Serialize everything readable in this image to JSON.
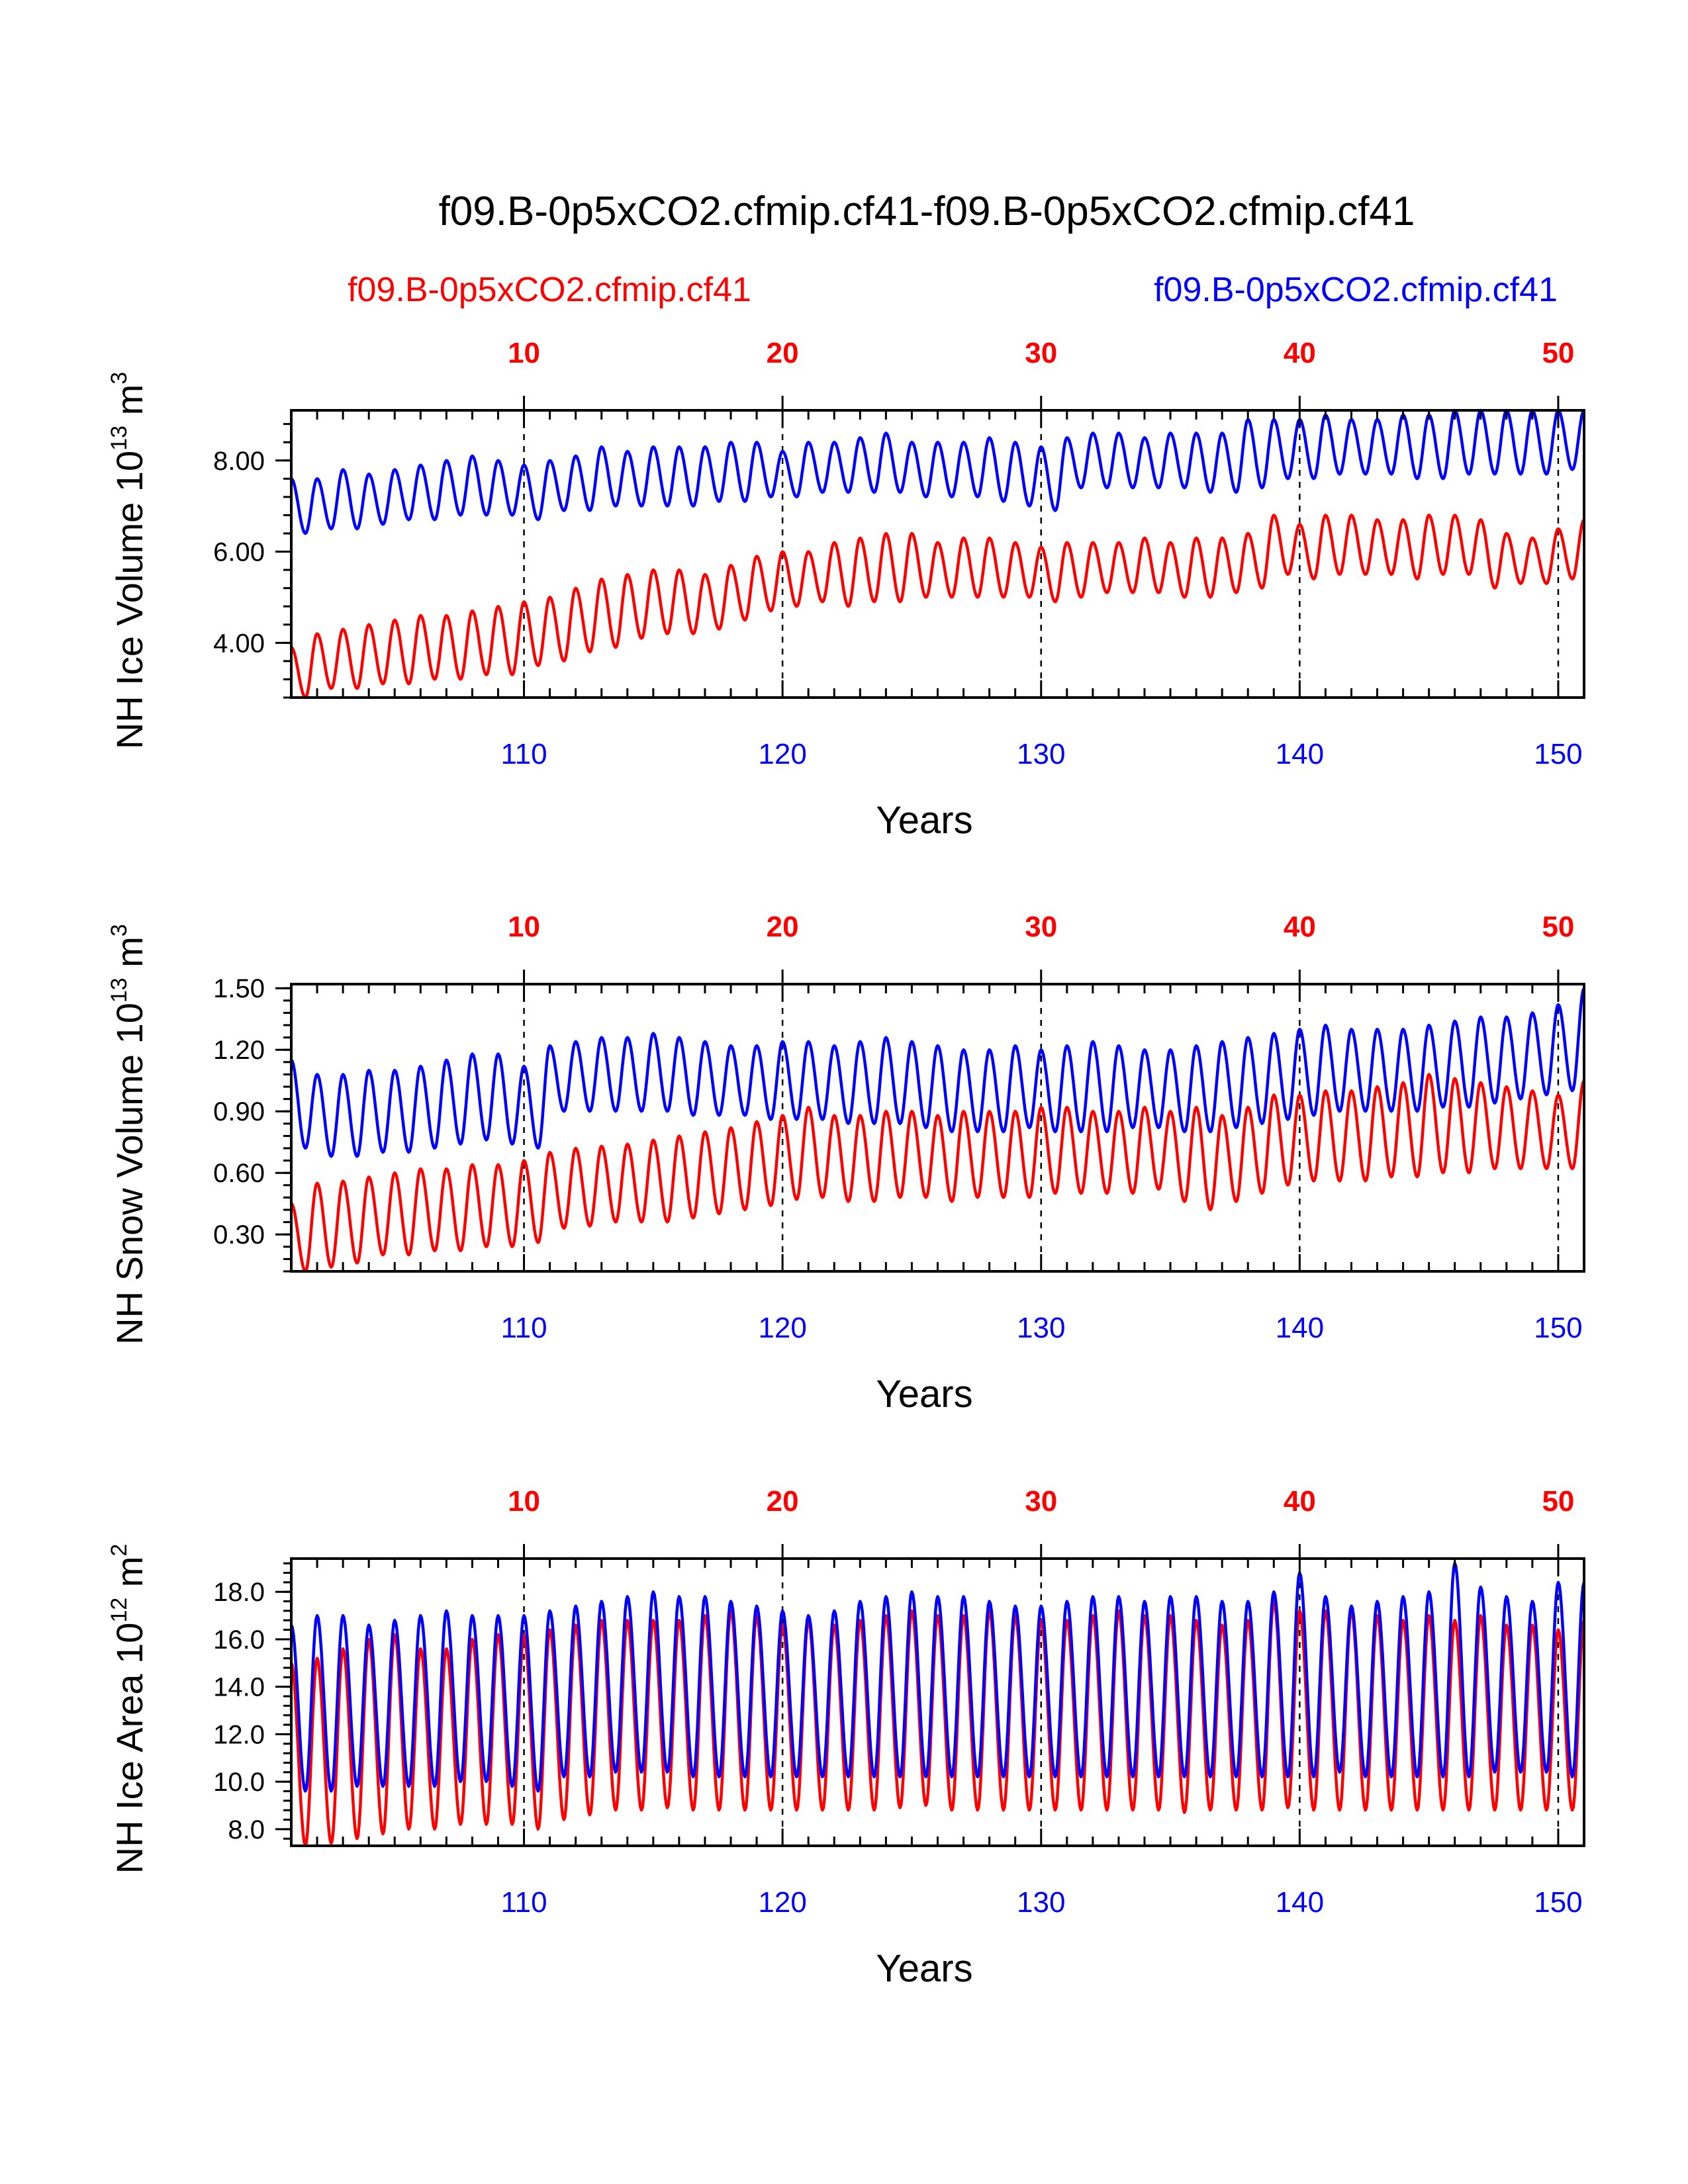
{
  "title": "f09.B-0p5xCO2.cfmip.cf41-f09.B-0p5xCO2.cfmip.cf41",
  "legend_left": "f09.B-0p5xCO2.cfmip.cf41",
  "legend_right": "f09.B-0p5xCO2.cfmip.cf41",
  "colors": {
    "series1": "#ff0000",
    "series2": "#0000ff",
    "axis": "#000000"
  },
  "chart_data": [
    {
      "type": "line",
      "ylabel_base": "NH Ice Volume 10",
      "ylabel_exp": "13",
      "ylabel_unit": " m",
      "ylabel_unit_exp": "3",
      "xlabel": "Years",
      "ylim": [
        2.8,
        9.1
      ],
      "yticks": [
        "4.00",
        "6.00",
        "8.00"
      ],
      "ytick_values": [
        4,
        6,
        8
      ],
      "x_top_ticks": [
        "10",
        "20",
        "30",
        "40",
        "50"
      ],
      "x_bottom_ticks": [
        "110",
        "120",
        "130",
        "140",
        "150"
      ],
      "xlim": [
        101,
        151
      ],
      "series": [
        {
          "color": "red",
          "annual_max": [
            3.9,
            4.2,
            4.3,
            4.4,
            4.5,
            4.6,
            4.6,
            4.7,
            4.8,
            4.9,
            5.0,
            5.2,
            5.4,
            5.5,
            5.6,
            5.6,
            5.5,
            5.7,
            5.9,
            6.0,
            6.0,
            6.2,
            6.3,
            6.4,
            6.4,
            6.2,
            6.3,
            6.3,
            6.2,
            6.1,
            6.2,
            6.2,
            6.2,
            6.3,
            6.2,
            6.3,
            6.3,
            6.4,
            6.8,
            6.6,
            6.8,
            6.8,
            6.7,
            6.7,
            6.8,
            6.8,
            6.7,
            6.4,
            6.3,
            6.5,
            6.7
          ],
          "annual_min": [
            2.8,
            3.0,
            3.0,
            3.1,
            3.1,
            3.2,
            3.2,
            3.3,
            3.3,
            3.5,
            3.6,
            3.8,
            3.9,
            4.1,
            4.2,
            4.2,
            4.3,
            4.5,
            4.7,
            4.8,
            4.9,
            4.8,
            4.9,
            4.9,
            5.0,
            5.0,
            5.0,
            5.0,
            5.0,
            4.9,
            5.0,
            5.1,
            5.1,
            5.1,
            5.0,
            5.0,
            5.1,
            5.2,
            5.5,
            5.4,
            5.5,
            5.5,
            5.5,
            5.4,
            5.5,
            5.5,
            5.2,
            5.3,
            5.3,
            5.4,
            5.4
          ]
        },
        {
          "color": "blue",
          "annual_max": [
            7.6,
            7.6,
            7.8,
            7.7,
            7.8,
            7.9,
            8.0,
            8.1,
            8.0,
            7.9,
            8.0,
            8.1,
            8.3,
            8.2,
            8.3,
            8.3,
            8.3,
            8.4,
            8.4,
            8.2,
            8.4,
            8.4,
            8.5,
            8.6,
            8.4,
            8.4,
            8.4,
            8.5,
            8.4,
            8.3,
            8.5,
            8.6,
            8.6,
            8.5,
            8.6,
            8.6,
            8.6,
            8.9,
            8.9,
            8.9,
            9.0,
            8.9,
            8.9,
            9.0,
            9.0,
            9.1,
            9.1,
            9.1,
            9.1,
            9.1,
            9.1
          ],
          "annual_min": [
            6.4,
            6.5,
            6.5,
            6.6,
            6.7,
            6.7,
            6.8,
            6.8,
            6.8,
            6.7,
            6.9,
            6.9,
            7.0,
            7.0,
            7.0,
            7.0,
            7.1,
            7.1,
            7.2,
            7.2,
            7.3,
            7.3,
            7.3,
            7.3,
            7.2,
            7.2,
            7.2,
            7.1,
            7.0,
            6.9,
            7.4,
            7.4,
            7.4,
            7.4,
            7.4,
            7.3,
            7.3,
            7.4,
            7.6,
            7.6,
            7.7,
            7.7,
            7.7,
            7.6,
            7.6,
            7.7,
            7.7,
            7.7,
            7.7,
            7.8,
            7.8
          ]
        }
      ]
    },
    {
      "type": "line",
      "ylabel_base": "NH Snow Volume 10",
      "ylabel_exp": "13",
      "ylabel_unit": " m",
      "ylabel_unit_exp": "3",
      "xlabel": "Years",
      "ylim": [
        0.12,
        1.52
      ],
      "yticks": [
        "0.30",
        "0.60",
        "0.90",
        "1.20",
        "1.50"
      ],
      "ytick_values": [
        0.3,
        0.6,
        0.9,
        1.2,
        1.5
      ],
      "x_top_ticks": [
        "10",
        "20",
        "30",
        "40",
        "50"
      ],
      "x_bottom_ticks": [
        "110",
        "120",
        "130",
        "140",
        "150"
      ],
      "xlim": [
        101,
        151
      ],
      "series": [
        {
          "color": "red",
          "annual_max": [
            0.45,
            0.55,
            0.56,
            0.58,
            0.6,
            0.62,
            0.62,
            0.64,
            0.64,
            0.66,
            0.7,
            0.72,
            0.73,
            0.74,
            0.76,
            0.78,
            0.8,
            0.82,
            0.85,
            0.88,
            0.92,
            0.88,
            0.88,
            0.9,
            0.9,
            0.88,
            0.9,
            0.9,
            0.9,
            0.92,
            0.92,
            0.9,
            0.9,
            0.92,
            0.9,
            0.92,
            0.88,
            0.92,
            0.98,
            0.98,
            1.0,
            1.0,
            1.02,
            1.04,
            1.08,
            1.06,
            1.04,
            1.02,
            1.0,
            0.98,
            1.05
          ],
          "annual_min": [
            0.12,
            0.14,
            0.16,
            0.2,
            0.2,
            0.22,
            0.22,
            0.24,
            0.24,
            0.26,
            0.33,
            0.34,
            0.36,
            0.36,
            0.36,
            0.38,
            0.4,
            0.42,
            0.44,
            0.47,
            0.48,
            0.46,
            0.46,
            0.48,
            0.48,
            0.46,
            0.48,
            0.48,
            0.48,
            0.5,
            0.5,
            0.5,
            0.5,
            0.52,
            0.46,
            0.42,
            0.46,
            0.5,
            0.54,
            0.56,
            0.56,
            0.56,
            0.58,
            0.58,
            0.6,
            0.6,
            0.62,
            0.62,
            0.62,
            0.62,
            0.62
          ]
        },
        {
          "color": "blue",
          "annual_max": [
            1.15,
            1.08,
            1.08,
            1.1,
            1.1,
            1.12,
            1.15,
            1.18,
            1.18,
            1.12,
            1.22,
            1.24,
            1.26,
            1.26,
            1.28,
            1.26,
            1.24,
            1.22,
            1.22,
            1.24,
            1.24,
            1.22,
            1.24,
            1.26,
            1.24,
            1.22,
            1.2,
            1.2,
            1.22,
            1.2,
            1.22,
            1.24,
            1.22,
            1.2,
            1.2,
            1.22,
            1.24,
            1.26,
            1.28,
            1.3,
            1.32,
            1.3,
            1.3,
            1.3,
            1.32,
            1.34,
            1.36,
            1.36,
            1.38,
            1.42,
            1.5
          ],
          "annual_min": [
            0.72,
            0.68,
            0.68,
            0.7,
            0.7,
            0.72,
            0.74,
            0.76,
            0.74,
            0.72,
            0.9,
            0.9,
            0.9,
            0.9,
            0.9,
            0.88,
            0.88,
            0.88,
            0.86,
            0.86,
            0.86,
            0.84,
            0.84,
            0.84,
            0.82,
            0.8,
            0.8,
            0.8,
            0.82,
            0.8,
            0.8,
            0.8,
            0.82,
            0.82,
            0.8,
            0.8,
            0.82,
            0.84,
            0.86,
            0.88,
            0.9,
            0.9,
            0.9,
            0.9,
            0.92,
            0.92,
            0.94,
            0.96,
            0.98,
            1.0,
            1.18
          ]
        }
      ]
    },
    {
      "type": "line",
      "ylabel_base": "NH Ice Area 10",
      "ylabel_exp": "12",
      "ylabel_unit": " m",
      "ylabel_unit_exp": "2",
      "xlabel": "Years",
      "ylim": [
        7.3,
        19.4
      ],
      "yticks": [
        "8.0",
        "10.0",
        "12.0",
        "14.0",
        "16.0",
        "18.0"
      ],
      "ytick_values": [
        8,
        10,
        12,
        14,
        16,
        18
      ],
      "x_top_ticks": [
        "10",
        "20",
        "30",
        "40",
        "50"
      ],
      "x_bottom_ticks": [
        "110",
        "120",
        "130",
        "140",
        "150"
      ],
      "xlim": [
        101,
        151
      ],
      "series": [
        {
          "color": "red",
          "annual_max": [
            15.0,
            15.2,
            15.6,
            16.0,
            16.2,
            15.6,
            15.6,
            16.0,
            16.2,
            16.2,
            16.4,
            16.6,
            16.8,
            16.8,
            16.8,
            16.8,
            17.0,
            17.2,
            17.0,
            16.6,
            16.8,
            16.6,
            16.8,
            17.0,
            17.2,
            17.0,
            17.0,
            17.2,
            17.0,
            16.8,
            16.8,
            17.0,
            17.2,
            17.0,
            17.0,
            16.8,
            16.6,
            16.8,
            17.6,
            17.2,
            17.2,
            17.2,
            17.0,
            16.8,
            17.0,
            16.8,
            17.0,
            16.6,
            16.6,
            16.4,
            16.8
          ],
          "annual_min": [
            7.3,
            7.4,
            7.6,
            7.8,
            8.0,
            8.0,
            8.2,
            8.2,
            8.2,
            8.0,
            8.4,
            8.6,
            8.8,
            8.8,
            8.9,
            8.8,
            8.8,
            8.8,
            8.8,
            8.8,
            8.8,
            8.8,
            8.8,
            8.9,
            9.0,
            8.8,
            8.8,
            8.8,
            8.8,
            8.8,
            8.8,
            8.8,
            8.8,
            8.8,
            8.7,
            8.8,
            8.8,
            8.8,
            8.9,
            8.8,
            8.8,
            8.8,
            8.8,
            8.8,
            8.8,
            8.8,
            8.8,
            8.8,
            8.8,
            8.8,
            9.0
          ]
        },
        {
          "color": "blue",
          "annual_max": [
            16.6,
            17.0,
            17.0,
            16.6,
            16.8,
            17.0,
            17.2,
            17.0,
            17.0,
            17.0,
            17.2,
            17.4,
            17.6,
            17.8,
            18.0,
            17.8,
            17.8,
            17.6,
            17.4,
            17.2,
            17.0,
            17.2,
            17.6,
            17.8,
            18.0,
            17.8,
            17.8,
            17.6,
            17.4,
            17.4,
            17.6,
            17.8,
            17.8,
            17.6,
            17.8,
            17.8,
            17.6,
            17.6,
            18.0,
            18.8,
            17.8,
            17.4,
            17.6,
            17.8,
            18.0,
            19.2,
            18.2,
            17.8,
            17.6,
            18.4,
            18.4
          ],
          "annual_min": [
            9.6,
            9.6,
            9.8,
            9.8,
            9.8,
            9.8,
            10.0,
            10.0,
            9.8,
            9.6,
            10.2,
            10.2,
            10.4,
            10.4,
            10.4,
            10.2,
            10.2,
            10.2,
            10.2,
            10.2,
            10.2,
            10.2,
            10.2,
            10.2,
            10.2,
            10.2,
            10.2,
            10.2,
            10.2,
            10.2,
            10.2,
            10.2,
            10.2,
            10.2,
            10.2,
            10.2,
            10.2,
            10.2,
            10.2,
            10.2,
            10.4,
            10.2,
            10.2,
            10.2,
            10.2,
            10.2,
            10.4,
            10.4,
            10.4,
            10.2,
            10.2
          ]
        }
      ]
    }
  ]
}
